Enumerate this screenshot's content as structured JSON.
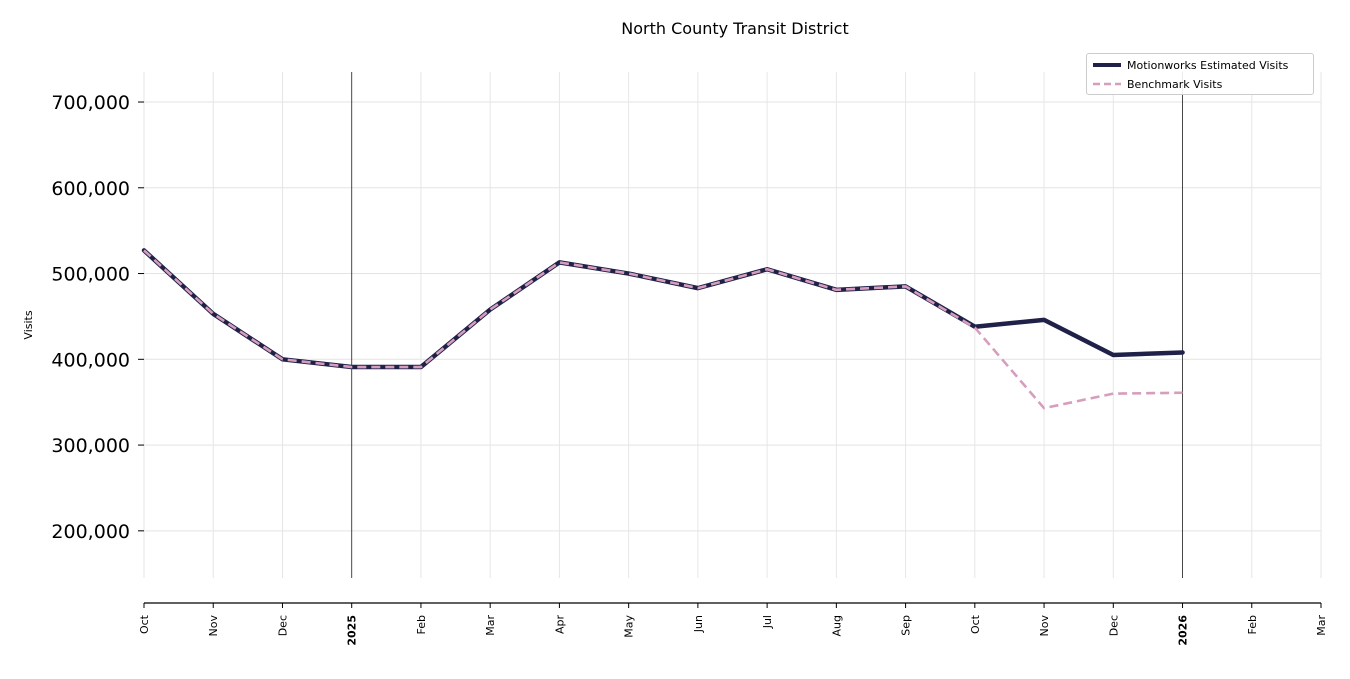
{
  "chart_data": {
    "type": "line",
    "title": "North County Transit District",
    "xlabel": "",
    "ylabel": "Visits",
    "ylim": [
      145000,
      735000
    ],
    "yticks": [
      200000,
      300000,
      400000,
      500000,
      600000,
      700000
    ],
    "ytick_labels": [
      "200,000",
      "300,000",
      "400,000",
      "500,000",
      "600,000",
      "700,000"
    ],
    "x_labels": [
      "Oct",
      "Nov",
      "Dec",
      "2025",
      "Feb",
      "Mar",
      "Apr",
      "May",
      "Jun",
      "Jul",
      "Aug",
      "Sep",
      "Oct",
      "Nov",
      "Dec",
      "2026",
      "Feb",
      "Mar"
    ],
    "x_label_bold": [
      false,
      false,
      false,
      true,
      false,
      false,
      false,
      false,
      false,
      false,
      false,
      false,
      false,
      false,
      false,
      true,
      false,
      false
    ],
    "year_lines_at": [
      "2025",
      "2026"
    ],
    "grid": true,
    "legend_position": "top-right",
    "series": [
      {
        "name": "Motionworks Estimated Visits",
        "color": "#1f2149",
        "style": "solid",
        "values": [
          527000,
          453000,
          400000,
          391000,
          391000,
          458000,
          513000,
          500000,
          483000,
          505000,
          481000,
          485000,
          438000,
          446000,
          405000,
          408000
        ]
      },
      {
        "name": "Benchmark Visits",
        "color": "#d79dbd",
        "style": "dashed",
        "values": [
          527000,
          453000,
          400000,
          391000,
          391000,
          458000,
          513000,
          500000,
          483000,
          505000,
          481000,
          485000,
          437000,
          343000,
          360000,
          361000
        ]
      }
    ]
  }
}
